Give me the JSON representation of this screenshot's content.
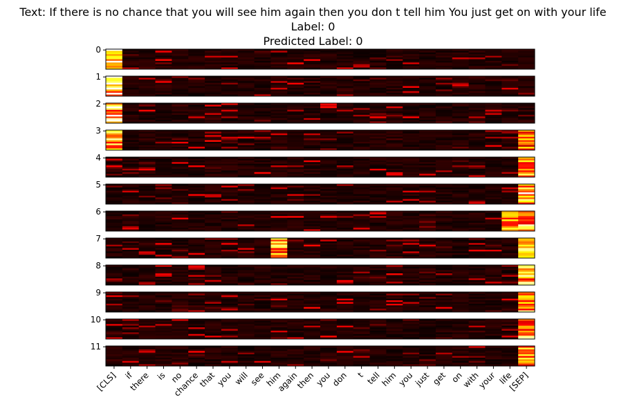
{
  "titles": {
    "line1": "Text: If there is no chance that you will see him again then you don t tell him You just get on with your life",
    "line2": "Label: 0",
    "line3": "Predicted Label: 0"
  },
  "chart_data": {
    "type": "heatmap",
    "title": "Text: If there is no chance that you will see him again then you don t tell him You just get on with your life\nLabel: 0\nPredicted Label: 0",
    "tokens": [
      "[CLS]",
      "if",
      "there",
      "is",
      "no",
      "chance",
      "that",
      "you",
      "will",
      "see",
      "him",
      "again",
      "then",
      "you",
      "don",
      "t",
      "tell",
      "him",
      "you",
      "just",
      "get",
      "on",
      "with",
      "your",
      "life",
      "[SEP]"
    ],
    "layers": [
      "0",
      "1",
      "2",
      "3",
      "4",
      "5",
      "6",
      "7",
      "8",
      "9",
      "10",
      "11"
    ],
    "heads_per_layer": 12,
    "colormap": "hot",
    "value_range": [
      0,
      1
    ],
    "highlights": [
      {
        "layer": 0,
        "token": 0,
        "level": 0.95
      },
      {
        "layer": 1,
        "token": 0,
        "level": 0.95
      },
      {
        "layer": 2,
        "token": 0,
        "level": 1.0
      },
      {
        "layer": 3,
        "token": 0,
        "level": 0.85
      },
      {
        "layer": 3,
        "token": 25,
        "level": 0.7
      },
      {
        "layer": 4,
        "token": 25,
        "level": 0.95
      },
      {
        "layer": 5,
        "token": 25,
        "level": 0.95
      },
      {
        "layer": 6,
        "token": 25,
        "level": 0.85
      },
      {
        "layer": 7,
        "token": 25,
        "level": 0.9
      },
      {
        "layer": 8,
        "token": 25,
        "level": 0.85
      },
      {
        "layer": 9,
        "token": 25,
        "level": 0.9
      },
      {
        "layer": 10,
        "token": 25,
        "level": 0.9
      },
      {
        "layer": 11,
        "token": 25,
        "level": 0.75
      },
      {
        "layer": 7,
        "token": 10,
        "level": 0.8
      },
      {
        "layer": 6,
        "token": 24,
        "level": 0.75
      }
    ]
  }
}
